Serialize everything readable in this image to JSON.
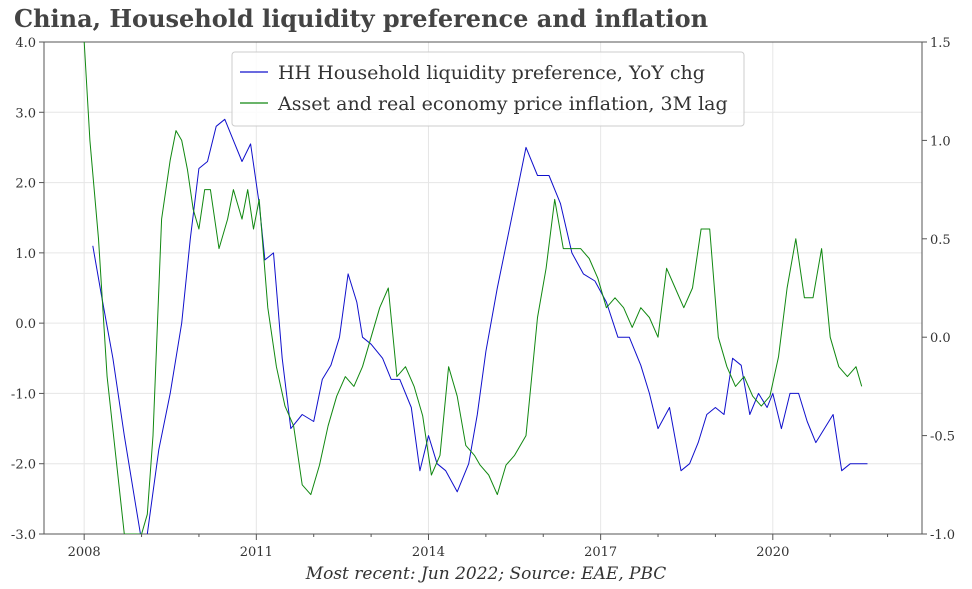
{
  "chart_data": {
    "type": "line",
    "title": "China, Household liquidity preference and inflation",
    "caption": "Most recent: Jun 2022; Source: EAE, PBC",
    "x_axis": {
      "range": [
        2007.3,
        2022.6
      ],
      "ticks": [
        2008,
        2011,
        2014,
        2017,
        2020
      ],
      "tick_labels": [
        "2008",
        "2011",
        "2014",
        "2017",
        "2020"
      ]
    },
    "y_left": {
      "range": [
        -3.0,
        4.0
      ],
      "ticks": [
        -3,
        -2,
        -1,
        0,
        1,
        2,
        3,
        4
      ],
      "tick_labels": [
        "-3.0",
        "-2.0",
        "-1.0",
        "0.0",
        "1.0",
        "2.0",
        "3.0",
        "4.0"
      ]
    },
    "y_right": {
      "range": [
        -1.0,
        1.5
      ],
      "ticks": [
        -1.0,
        -0.5,
        0.0,
        0.5,
        1.0,
        1.5
      ],
      "tick_labels": [
        "-1.0",
        "-0.5",
        "0.0",
        "0.5",
        "1.0",
        "1.5"
      ]
    },
    "grid": true,
    "legend_position": "top-center",
    "series": [
      {
        "name": "HH Household liquidity preference, YoY chg",
        "axis": "left",
        "color": "#1010cc",
        "x": [
          2008.15,
          2008.3,
          2008.5,
          2008.7,
          2008.9,
          2009.0,
          2009.1,
          2009.3,
          2009.5,
          2009.7,
          2009.85,
          2010.0,
          2010.15,
          2010.3,
          2010.45,
          2010.6,
          2010.75,
          2010.9,
          2011.05,
          2011.15,
          2011.3,
          2011.45,
          2011.6,
          2011.8,
          2012.0,
          2012.15,
          2012.3,
          2012.45,
          2012.6,
          2012.75,
          2012.85,
          2013.0,
          2013.2,
          2013.35,
          2013.5,
          2013.7,
          2013.85,
          2014.0,
          2014.15,
          2014.3,
          2014.5,
          2014.7,
          2014.85,
          2015.0,
          2015.2,
          2015.45,
          2015.7,
          2015.9,
          2016.1,
          2016.3,
          2016.5,
          2016.7,
          2016.9,
          2017.1,
          2017.3,
          2017.5,
          2017.7,
          2017.85,
          2018.0,
          2018.2,
          2018.4,
          2018.55,
          2018.7,
          2018.85,
          2019.0,
          2019.15,
          2019.3,
          2019.45,
          2019.6,
          2019.75,
          2019.9,
          2020.0,
          2020.15,
          2020.3,
          2020.45,
          2020.6,
          2020.75,
          2020.9,
          2021.05,
          2021.2,
          2021.35,
          2021.5,
          2021.65
        ],
        "y": [
          1.1,
          0.4,
          -0.5,
          -1.6,
          -2.6,
          -3.1,
          -3.0,
          -1.8,
          -1.0,
          0.0,
          1.2,
          2.2,
          2.3,
          2.8,
          2.9,
          2.6,
          2.3,
          2.55,
          1.7,
          0.9,
          1.0,
          -0.5,
          -1.5,
          -1.3,
          -1.4,
          -0.8,
          -0.6,
          -0.2,
          0.7,
          0.3,
          -0.2,
          -0.3,
          -0.5,
          -0.8,
          -0.8,
          -1.2,
          -2.1,
          -1.6,
          -2.0,
          -2.1,
          -2.4,
          -2.0,
          -1.3,
          -0.4,
          0.5,
          1.5,
          2.5,
          2.1,
          2.1,
          1.7,
          1.0,
          0.7,
          0.6,
          0.3,
          -0.2,
          -0.2,
          -0.6,
          -1.0,
          -1.5,
          -1.2,
          -2.1,
          -2.0,
          -1.7,
          -1.3,
          -1.2,
          -1.3,
          -0.5,
          -0.6,
          -1.3,
          -1.0,
          -1.2,
          -1.0,
          -1.5,
          -1.0,
          -1.0,
          -1.4,
          -1.7,
          -1.5,
          -1.3,
          -2.1,
          -2.0,
          -2.0,
          -2.0
        ]
      },
      {
        "name": "Asset and real economy price inflation, 3M lag",
        "axis": "right",
        "color": "#118811",
        "x": [
          2008.0,
          2008.1,
          2008.25,
          2008.4,
          2008.55,
          2008.7,
          2008.8,
          2008.9,
          2009.0,
          2009.1,
          2009.2,
          2009.35,
          2009.5,
          2009.6,
          2009.7,
          2009.8,
          2009.9,
          2010.0,
          2010.1,
          2010.2,
          2010.35,
          2010.5,
          2010.6,
          2010.75,
          2010.85,
          2010.95,
          2011.05,
          2011.2,
          2011.35,
          2011.5,
          2011.65,
          2011.8,
          2011.95,
          2012.1,
          2012.25,
          2012.4,
          2012.55,
          2012.7,
          2012.85,
          2013.0,
          2013.15,
          2013.3,
          2013.45,
          2013.6,
          2013.75,
          2013.9,
          2014.05,
          2014.2,
          2014.35,
          2014.5,
          2014.65,
          2014.8,
          2014.9,
          2015.05,
          2015.2,
          2015.35,
          2015.5,
          2015.7,
          2015.9,
          2016.05,
          2016.2,
          2016.35,
          2016.5,
          2016.65,
          2016.8,
          2016.95,
          2017.1,
          2017.25,
          2017.4,
          2017.55,
          2017.7,
          2017.85,
          2018.0,
          2018.15,
          2018.3,
          2018.45,
          2018.6,
          2018.75,
          2018.9,
          2019.05,
          2019.2,
          2019.35,
          2019.5,
          2019.65,
          2019.8,
          2019.95,
          2020.1,
          2020.25,
          2020.4,
          2020.55,
          2020.7,
          2020.85,
          2021.0,
          2021.15,
          2021.3,
          2021.45,
          2021.55
        ],
        "y": [
          1.5,
          1.0,
          0.5,
          -0.2,
          -0.6,
          -1.0,
          -1.0,
          -1.0,
          -1.0,
          -0.9,
          -0.5,
          0.6,
          0.9,
          1.05,
          1.0,
          0.85,
          0.65,
          0.55,
          0.75,
          0.75,
          0.45,
          0.6,
          0.75,
          0.6,
          0.75,
          0.55,
          0.7,
          0.15,
          -0.15,
          -0.35,
          -0.45,
          -0.75,
          -0.8,
          -0.65,
          -0.45,
          -0.3,
          -0.2,
          -0.25,
          -0.15,
          0.0,
          0.15,
          0.25,
          -0.2,
          -0.15,
          -0.25,
          -0.4,
          -0.7,
          -0.6,
          -0.15,
          -0.3,
          -0.55,
          -0.6,
          -0.65,
          -0.7,
          -0.8,
          -0.65,
          -0.6,
          -0.5,
          0.1,
          0.35,
          0.7,
          0.45,
          0.45,
          0.45,
          0.4,
          0.3,
          0.15,
          0.2,
          0.15,
          0.05,
          0.15,
          0.1,
          0.0,
          0.35,
          0.25,
          0.15,
          0.25,
          0.55,
          0.55,
          0.0,
          -0.15,
          -0.25,
          -0.2,
          -0.3,
          -0.35,
          -0.3,
          -0.1,
          0.25,
          0.5,
          0.2,
          0.2,
          0.45,
          0.0,
          -0.15,
          -0.2,
          -0.15,
          -0.25
        ]
      }
    ]
  }
}
